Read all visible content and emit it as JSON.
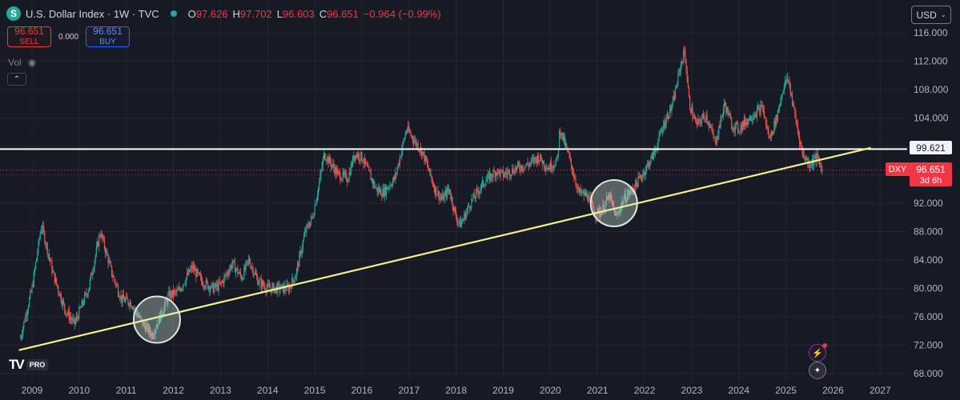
{
  "header": {
    "logo_letter": "S",
    "title": "U.S. Dollar Index · 1W · TVC",
    "open_label": "O",
    "open": "97.626",
    "high_label": "H",
    "high": "97.702",
    "low_label": "L",
    "low": "96.603",
    "close_label": "C",
    "close": "96.651",
    "change": "−0.964 (−0.99%)"
  },
  "trade": {
    "sell_price": "96.651",
    "sell_label": "SELL",
    "spread": "0.000",
    "buy_price": "96.651",
    "buy_label": "BUY"
  },
  "indicators": {
    "vol_label": "Vol",
    "eye_icon": "◉",
    "collapse_icon": "⌃"
  },
  "currency": {
    "label": "USD",
    "chevron": "⌄"
  },
  "price_labels": {
    "level": "99.621",
    "symbol": "DXY",
    "last": "96.651",
    "countdown": "3d 6h"
  },
  "branding": {
    "logo_text": "TV",
    "badge": "PRO"
  },
  "bottom_icons": {
    "alert": "⚡",
    "flag": "✦"
  },
  "colors": {
    "up": "#26a69a",
    "down": "#ef5350",
    "background": "#161a25",
    "grid": "#232632",
    "trendline": "#f5f08c",
    "level_line": "#ffffff",
    "circle": "#d8ead8"
  },
  "chart_data": {
    "type": "candlestick",
    "timeframe": "1W",
    "ylim": [
      66.5,
      117.5
    ],
    "xlim": [
      2008.7,
      2027.3
    ],
    "y_ticks": [
      "68.000",
      "72.000",
      "76.000",
      "80.000",
      "84.000",
      "88.000",
      "92.000",
      "96.000",
      "100.000",
      "104.000",
      "108.000",
      "112.000",
      "116.000"
    ],
    "y_tick_values": [
      68,
      72,
      76,
      80,
      84,
      88,
      92,
      96,
      100,
      104,
      108,
      112,
      116
    ],
    "x_ticks": [
      "2009",
      "2010",
      "2011",
      "2012",
      "2013",
      "2014",
      "2015",
      "2016",
      "2017",
      "2018",
      "2019",
      "2020",
      "2021",
      "2022",
      "2023",
      "2024",
      "2025",
      "2026",
      "2027"
    ],
    "x_tick_values": [
      2009,
      2010,
      2011,
      2012,
      2013,
      2014,
      2015,
      2016,
      2017,
      2018,
      2019,
      2020,
      2021,
      2022,
      2023,
      2024,
      2025,
      2026,
      2027
    ],
    "price_path": [
      [
        2008.75,
        73.0
      ],
      [
        2009.0,
        80.0
      ],
      [
        2009.2,
        89.0
      ],
      [
        2009.45,
        82.0
      ],
      [
        2009.7,
        77.0
      ],
      [
        2009.9,
        75.0
      ],
      [
        2010.2,
        80.0
      ],
      [
        2010.45,
        88.0
      ],
      [
        2010.7,
        82.0
      ],
      [
        2010.9,
        78.5
      ],
      [
        2011.1,
        78.0
      ],
      [
        2011.35,
        75.0
      ],
      [
        2011.55,
        73.5
      ],
      [
        2011.75,
        76.5
      ],
      [
        2011.9,
        79.0
      ],
      [
        2012.1,
        79.5
      ],
      [
        2012.4,
        83.0
      ],
      [
        2012.6,
        81.0
      ],
      [
        2012.85,
        80.0
      ],
      [
        2013.0,
        80.5
      ],
      [
        2013.25,
        83.5
      ],
      [
        2013.45,
        81.5
      ],
      [
        2013.6,
        84.0
      ],
      [
        2013.8,
        81.0
      ],
      [
        2014.0,
        80.0
      ],
      [
        2014.2,
        80.0
      ],
      [
        2014.45,
        80.0
      ],
      [
        2014.6,
        82.0
      ],
      [
        2014.8,
        88.0
      ],
      [
        2014.95,
        90.0
      ],
      [
        2015.1,
        95.0
      ],
      [
        2015.2,
        99.0
      ],
      [
        2015.5,
        96.0
      ],
      [
        2015.7,
        95.5
      ],
      [
        2015.85,
        99.0
      ],
      [
        2016.0,
        98.5
      ],
      [
        2016.3,
        94.0
      ],
      [
        2016.45,
        93.5
      ],
      [
        2016.7,
        95.5
      ],
      [
        2016.95,
        102.5
      ],
      [
        2017.1,
        101.0
      ],
      [
        2017.3,
        99.0
      ],
      [
        2017.55,
        94.0
      ],
      [
        2017.7,
        92.5
      ],
      [
        2017.85,
        94.0
      ],
      [
        2018.0,
        90.0
      ],
      [
        2018.1,
        89.0
      ],
      [
        2018.3,
        92.0
      ],
      [
        2018.6,
        95.0
      ],
      [
        2018.85,
        96.5
      ],
      [
        2019.0,
        96.0
      ],
      [
        2019.3,
        97.0
      ],
      [
        2019.55,
        97.5
      ],
      [
        2019.75,
        98.5
      ],
      [
        2019.95,
        97.0
      ],
      [
        2020.15,
        98.0
      ],
      [
        2020.2,
        102.5
      ],
      [
        2020.35,
        99.5
      ],
      [
        2020.5,
        96.0
      ],
      [
        2020.6,
        93.5
      ],
      [
        2020.8,
        93.0
      ],
      [
        2020.95,
        90.5
      ],
      [
        2021.1,
        91.0
      ],
      [
        2021.25,
        93.0
      ],
      [
        2021.4,
        90.0
      ],
      [
        2021.55,
        92.5
      ],
      [
        2021.75,
        94.0
      ],
      [
        2021.95,
        96.0
      ],
      [
        2022.2,
        99.0
      ],
      [
        2022.4,
        103.0
      ],
      [
        2022.6,
        106.0
      ],
      [
        2022.75,
        111.0
      ],
      [
        2022.85,
        113.5
      ],
      [
        2022.95,
        106.0
      ],
      [
        2023.1,
        103.0
      ],
      [
        2023.3,
        104.5
      ],
      [
        2023.5,
        100.5
      ],
      [
        2023.7,
        106.0
      ],
      [
        2023.85,
        103.0
      ],
      [
        2024.0,
        102.5
      ],
      [
        2024.3,
        104.5
      ],
      [
        2024.5,
        105.5
      ],
      [
        2024.65,
        101.0
      ],
      [
        2024.8,
        104.0
      ],
      [
        2024.95,
        108.5
      ],
      [
        2025.05,
        109.5
      ],
      [
        2025.2,
        104.0
      ],
      [
        2025.35,
        99.0
      ],
      [
        2025.5,
        97.5
      ],
      [
        2025.65,
        98.5
      ],
      [
        2025.78,
        96.651
      ]
    ],
    "annotations": {
      "horizontal_line": 99.621,
      "trendline": [
        [
          2008.72,
          71.3
        ],
        [
          2026.8,
          99.8
        ]
      ],
      "circles": [
        [
          2011.65,
          75.6
        ],
        [
          2021.35,
          92.0
        ]
      ]
    },
    "last_price": 96.651
  }
}
